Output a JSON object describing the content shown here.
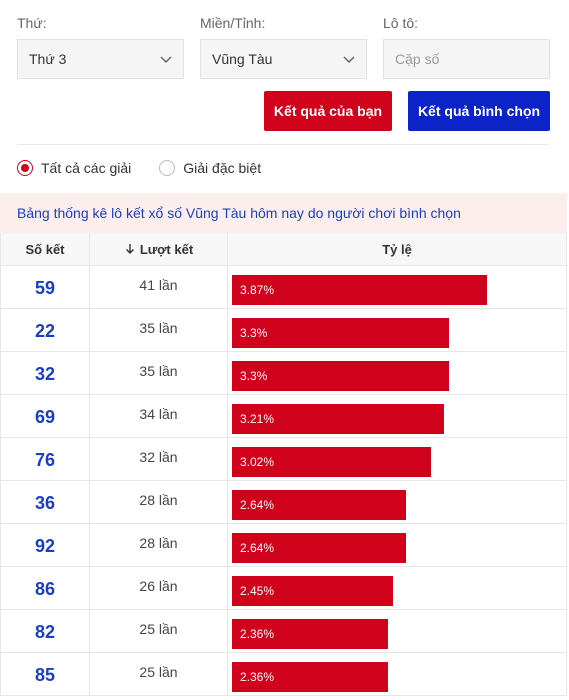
{
  "filters": {
    "day_label": "Thứ:",
    "day_value": "Thứ 3",
    "region_label": "Miền/Tỉnh:",
    "region_value": "Vũng Tàu",
    "loto_label": "Lô tô:",
    "loto_placeholder": "Cặp số"
  },
  "buttons": {
    "your_result": "Kết quả của bạn",
    "vote_result": "Kết quả bình chọn",
    "your_result_color": "#d0021b",
    "vote_result_color": "#0b23c7"
  },
  "radios": {
    "all_prizes": "Tất cả các giải",
    "special_prize": "Giải đặc biệt",
    "selected": "all_prizes"
  },
  "notice": "Bảng thống kê lô kết xổ số Vũng Tàu hôm nay do người chơi bình chọn",
  "table": {
    "headers": {
      "number": "Số kết",
      "count": "Lượt kết",
      "ratio": "Tỷ lệ"
    },
    "sort_icon": "arrow-down-icon",
    "max_percent": 3.87,
    "rows": [
      {
        "number": "59",
        "count": "41 lần",
        "percent": 3.87,
        "label": "3.87%"
      },
      {
        "number": "22",
        "count": "35 lần",
        "percent": 3.3,
        "label": "3.3%"
      },
      {
        "number": "32",
        "count": "35 lần",
        "percent": 3.3,
        "label": "3.3%"
      },
      {
        "number": "69",
        "count": "34 lần",
        "percent": 3.21,
        "label": "3.21%"
      },
      {
        "number": "76",
        "count": "32 lần",
        "percent": 3.02,
        "label": "3.02%"
      },
      {
        "number": "36",
        "count": "28 lần",
        "percent": 2.64,
        "label": "2.64%"
      },
      {
        "number": "92",
        "count": "28 lần",
        "percent": 2.64,
        "label": "2.64%"
      },
      {
        "number": "86",
        "count": "26 lần",
        "percent": 2.45,
        "label": "2.45%"
      },
      {
        "number": "82",
        "count": "25 lần",
        "percent": 2.36,
        "label": "2.36%"
      },
      {
        "number": "85",
        "count": "25 lần",
        "percent": 2.36,
        "label": "2.36%"
      }
    ]
  }
}
